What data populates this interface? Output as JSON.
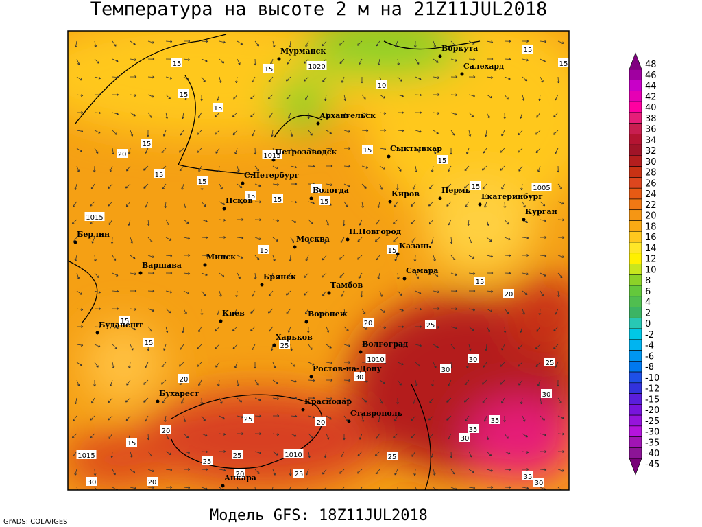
{
  "header": {
    "title": "Температура на высоте 2 м на 21Z11JUL2018"
  },
  "map": {
    "cities": [
      "Мурманск",
      "Воркута",
      "Салехард",
      "Архангельск",
      "Петрозаводск",
      "Сыктывкар",
      "С.Петербург",
      "Вологда",
      "Киров",
      "Пермь",
      "Екатеринбург",
      "Курган",
      "Псков",
      "Берлин",
      "Москва",
      "Н.Новгород",
      "Казань",
      "Минск",
      "Варшава",
      "Брянск",
      "Самара",
      "Тамбов",
      "Киев",
      "Воронеж",
      "Будапешт",
      "Харьков",
      "Волгоград",
      "Ростов-на-Дону",
      "Бухарест",
      "Краснодар",
      "Ставрополь",
      "Анкара"
    ],
    "contour_labels": [
      15,
      15,
      15,
      15,
      20,
      15,
      15,
      15,
      15,
      15,
      15,
      15,
      15,
      15,
      15,
      15,
      10,
      15,
      1020,
      1015,
      1005,
      1015,
      15,
      15,
      15,
      20,
      15,
      15,
      20,
      25,
      25,
      1010,
      30,
      30,
      30,
      25,
      30,
      20,
      25,
      20,
      35,
      35,
      30,
      20,
      15,
      1015,
      1010,
      25,
      25,
      20,
      25,
      25,
      35,
      30,
      30,
      20
    ]
  },
  "colorbar": {
    "levels": [
      {
        "value": 48,
        "color": "#800080"
      },
      {
        "value": 46,
        "color": "#a000a0"
      },
      {
        "value": 44,
        "color": "#c800c8"
      },
      {
        "value": 42,
        "color": "#e600b4"
      },
      {
        "value": 40,
        "color": "#ff00a0"
      },
      {
        "value": 38,
        "color": "#e61e78"
      },
      {
        "value": 36,
        "color": "#c81e50"
      },
      {
        "value": 34,
        "color": "#b41432"
      },
      {
        "value": 32,
        "color": "#a01428"
      },
      {
        "value": 30,
        "color": "#b41e1e"
      },
      {
        "value": 28,
        "color": "#c83214"
      },
      {
        "value": 26,
        "color": "#dc461e"
      },
      {
        "value": 24,
        "color": "#e65a14"
      },
      {
        "value": 22,
        "color": "#f07814"
      },
      {
        "value": 20,
        "color": "#f59614"
      },
      {
        "value": 18,
        "color": "#faaa14"
      },
      {
        "value": 16,
        "color": "#ffc81e"
      },
      {
        "value": 14,
        "color": "#ffe628"
      },
      {
        "value": 12,
        "color": "#fff000"
      },
      {
        "value": 10,
        "color": "#c8e61e"
      },
      {
        "value": 8,
        "color": "#8cd228"
      },
      {
        "value": 6,
        "color": "#64c83c"
      },
      {
        "value": 4,
        "color": "#50be50"
      },
      {
        "value": 2,
        "color": "#3cb464"
      },
      {
        "value": 0,
        "color": "#28c8b4"
      },
      {
        "value": -2,
        "color": "#00c8e6"
      },
      {
        "value": -4,
        "color": "#00b4f0"
      },
      {
        "value": -6,
        "color": "#0096f0"
      },
      {
        "value": -8,
        "color": "#0078f0"
      },
      {
        "value": -10,
        "color": "#1e50e6"
      },
      {
        "value": -12,
        "color": "#3232dc"
      },
      {
        "value": -15,
        "color": "#5a1edc"
      },
      {
        "value": -20,
        "color": "#7814dc"
      },
      {
        "value": -25,
        "color": "#9614dc"
      },
      {
        "value": -30,
        "color": "#b414dc"
      },
      {
        "value": -35,
        "color": "#a014b4"
      },
      {
        "value": -40,
        "color": "#8c1496"
      },
      {
        "value": -45,
        "color": "#780078"
      }
    ]
  },
  "footer": {
    "model": "Модель GFS: 18Z11JUL2018",
    "credit": "GrADS: COLA/IGES"
  }
}
